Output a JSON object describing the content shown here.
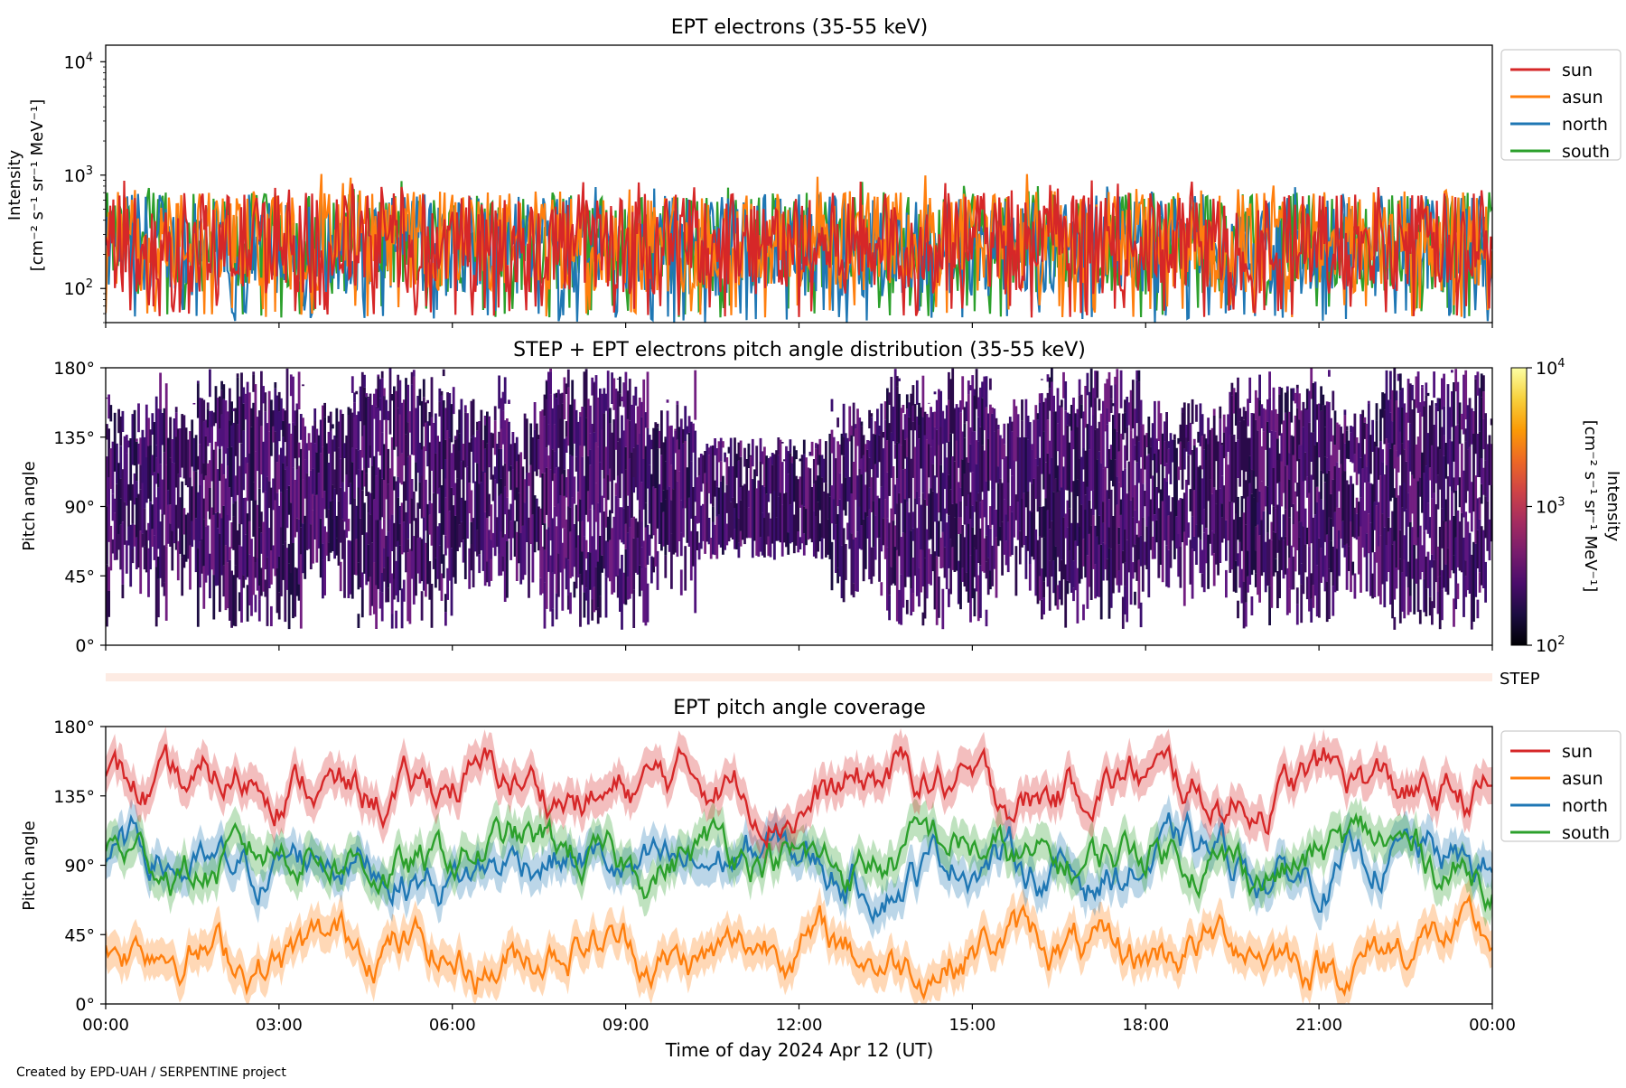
{
  "footer": {
    "credit": "Created by EPD-UAH / SERPENTINE project"
  },
  "colors": {
    "sun": "#d62728",
    "asun": "#ff7f0e",
    "north": "#1f77b4",
    "south": "#2ca02c",
    "step_bar": "#fdebe3",
    "colormap": [
      "#000004",
      "#1b0c41",
      "#4a0c6b",
      "#781c6d",
      "#a52c60",
      "#cf4446",
      "#ed6925",
      "#fb9b06",
      "#f7d13d",
      "#fcffa4"
    ]
  },
  "time_axis": {
    "label": "Time of day 2024 Apr 12 (UT)",
    "range_hours": [
      0,
      24
    ],
    "ticks": [
      {
        "hour": 0,
        "label": "00:00"
      },
      {
        "hour": 3,
        "label": "03:00"
      },
      {
        "hour": 6,
        "label": "06:00"
      },
      {
        "hour": 9,
        "label": "09:00"
      },
      {
        "hour": 12,
        "label": "12:00"
      },
      {
        "hour": 15,
        "label": "15:00"
      },
      {
        "hour": 18,
        "label": "18:00"
      },
      {
        "hour": 21,
        "label": "21:00"
      },
      {
        "hour": 24,
        "label": "00:00"
      }
    ]
  },
  "chart_data": [
    {
      "type": "line",
      "title": "EPT electrons (35-55 keV)",
      "ylabel_line1": "Intensity",
      "ylabel_line2": "[cm⁻² s⁻¹ sr⁻¹ MeV⁻¹]",
      "yscale": "log",
      "ylim": [
        50,
        14000
      ],
      "yticks": [
        {
          "value": 100,
          "base": "10",
          "exp": "2"
        },
        {
          "value": 1000,
          "base": "10",
          "exp": "3"
        },
        {
          "value": 10000,
          "base": "10",
          "exp": "4"
        }
      ],
      "legend_position": "outside-right-top",
      "series": [
        {
          "name": "sun",
          "typical": 250,
          "min": 55,
          "max": 900
        },
        {
          "name": "asun",
          "typical": 260,
          "min": 55,
          "max": 1050
        },
        {
          "name": "north",
          "typical": 240,
          "min": 50,
          "max": 800
        },
        {
          "name": "south",
          "typical": 250,
          "min": 55,
          "max": 900
        }
      ]
    },
    {
      "type": "heatmap",
      "title": "STEP + EPT electrons pitch angle distribution (35-55 keV)",
      "ylabel": "Pitch angle",
      "ylim": [
        0,
        180
      ],
      "yticks": [
        "0°",
        "45°",
        "90°",
        "135°",
        "180°"
      ],
      "colorbar": {
        "label_line1": "Intensity",
        "label_line2": "[cm⁻² s⁻¹ sr⁻¹ MeV⁻¹]",
        "scale": "log",
        "range": [
          100,
          10000
        ],
        "ticks": [
          {
            "value": 100,
            "base": "10",
            "exp": "2"
          },
          {
            "value": 1000,
            "base": "10",
            "exp": "3"
          },
          {
            "value": 10000,
            "base": "10",
            "exp": "4"
          }
        ]
      },
      "typical_intensity": 250,
      "step_label": "STEP"
    },
    {
      "type": "line",
      "title": "EPT pitch angle coverage",
      "ylabel": "Pitch angle",
      "ylim": [
        0,
        180
      ],
      "yticks": [
        "0°",
        "45°",
        "90°",
        "135°",
        "180°"
      ],
      "legend_position": "outside-right-top",
      "series": [
        {
          "name": "sun",
          "mean_deg": 140
        },
        {
          "name": "asun",
          "mean_deg": 35
        },
        {
          "name": "north",
          "mean_deg": 90
        },
        {
          "name": "south",
          "mean_deg": 95
        }
      ]
    }
  ]
}
